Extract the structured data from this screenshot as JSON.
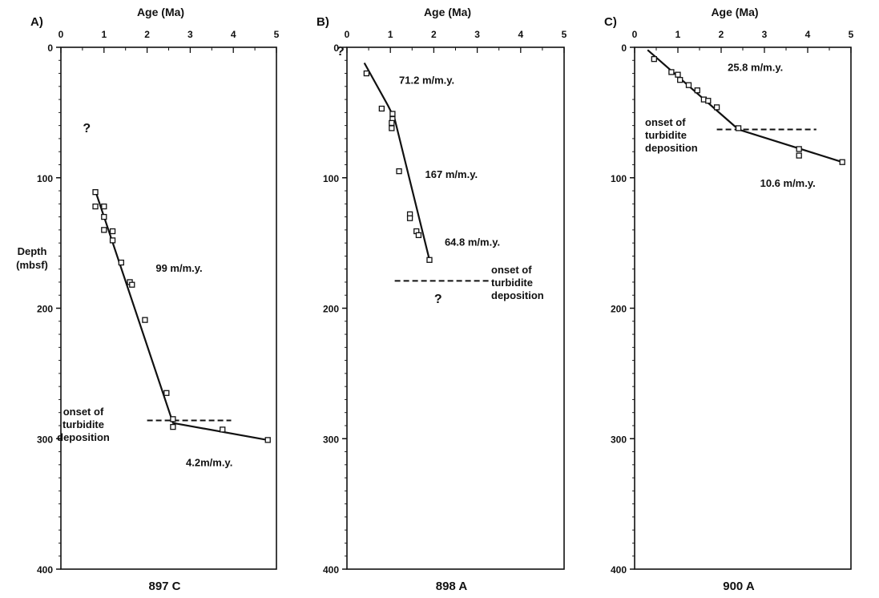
{
  "chart_data": [
    {
      "type": "scatter",
      "panel_label": "A)",
      "site_label": "897 C",
      "xlabel": "Age (Ma)",
      "ylabel": [
        "Depth",
        "(mbsf)"
      ],
      "xlim": [
        0,
        5
      ],
      "ylim": [
        0,
        400
      ],
      "y_inverted": true,
      "x_ticks": [
        "0",
        "1",
        "2",
        "3",
        "4",
        "5"
      ],
      "y_ticks": [
        "0",
        "100",
        "200",
        "300",
        "400"
      ],
      "points": [
        {
          "x": 0.8,
          "y": 111
        },
        {
          "x": 0.8,
          "y": 122
        },
        {
          "x": 1.0,
          "y": 122
        },
        {
          "x": 1.0,
          "y": 130
        },
        {
          "x": 1.0,
          "y": 140
        },
        {
          "x": 1.2,
          "y": 141
        },
        {
          "x": 1.2,
          "y": 148
        },
        {
          "x": 1.4,
          "y": 165
        },
        {
          "x": 1.6,
          "y": 180
        },
        {
          "x": 1.65,
          "y": 182
        },
        {
          "x": 1.95,
          "y": 209
        },
        {
          "x": 2.45,
          "y": 265
        },
        {
          "x": 2.6,
          "y": 285
        },
        {
          "x": 2.6,
          "y": 291
        },
        {
          "x": 3.75,
          "y": 293
        },
        {
          "x": 4.8,
          "y": 301
        }
      ],
      "fit_lines": [
        {
          "x": [
            0.8,
            2.6,
            4.8
          ],
          "y": [
            110,
            288,
            301
          ]
        }
      ],
      "onset_line": {
        "x": [
          2.0,
          3.95
        ],
        "y": 286
      },
      "annotations": [
        {
          "text": "99 m/m.y.",
          "x": 2.2,
          "y": 172
        },
        {
          "text": "4.2m/m.y.",
          "x": 2.9,
          "y": 321
        },
        {
          "text": "?",
          "x": 0.6,
          "y": 65
        }
      ],
      "onset_text": [
        "onset of",
        "turbidite",
        "deposition"
      ]
    },
    {
      "type": "scatter",
      "panel_label": "B)",
      "site_label": "898 A",
      "xlabel": "Age (Ma)",
      "xlim": [
        0,
        5
      ],
      "ylim": [
        0,
        400
      ],
      "y_inverted": true,
      "x_ticks": [
        "0",
        "1",
        "2",
        "3",
        "4",
        "5"
      ],
      "y_ticks": [
        "0",
        "100",
        "200",
        "300",
        "400"
      ],
      "points": [
        {
          "x": 0.45,
          "y": 20
        },
        {
          "x": 0.8,
          "y": 47
        },
        {
          "x": 1.05,
          "y": 51
        },
        {
          "x": 1.05,
          "y": 55
        },
        {
          "x": 1.03,
          "y": 58
        },
        {
          "x": 1.03,
          "y": 62
        },
        {
          "x": 1.2,
          "y": 95
        },
        {
          "x": 1.45,
          "y": 128
        },
        {
          "x": 1.45,
          "y": 131
        },
        {
          "x": 1.6,
          "y": 141
        },
        {
          "x": 1.65,
          "y": 144
        },
        {
          "x": 1.9,
          "y": 163
        }
      ],
      "fit_lines": [
        {
          "x": [
            0.4,
            0.95,
            1.1,
            1.9
          ],
          "y": [
            12,
            45,
            55,
            163
          ]
        }
      ],
      "onset_line": {
        "x": [
          1.1,
          3.3
        ],
        "y": 179
      },
      "annotations": [
        {
          "text": "71.2  m/m.y.",
          "x": 1.2,
          "y": 28
        },
        {
          "text": "167  m/m.y.",
          "x": 1.8,
          "y": 100
        },
        {
          "text": "64.8  m/m.y.",
          "x": 2.25,
          "y": 152
        },
        {
          "text": "?",
          "x": 2.1,
          "y": 196
        },
        {
          "text": "?",
          "x": -0.15,
          "y": 6
        }
      ],
      "onset_text": [
        "onset of",
        "turbidite",
        "deposition"
      ]
    },
    {
      "type": "scatter",
      "panel_label": "C)",
      "site_label": "900 A",
      "xlabel": "Age (Ma)",
      "xlim": [
        0,
        5
      ],
      "ylim": [
        0,
        400
      ],
      "y_inverted": true,
      "x_ticks": [
        "0",
        "1",
        "2",
        "3",
        "4",
        "5"
      ],
      "y_ticks": [
        "0",
        "100",
        "200",
        "300",
        "400"
      ],
      "points": [
        {
          "x": 0.45,
          "y": 9
        },
        {
          "x": 0.85,
          "y": 19
        },
        {
          "x": 1.0,
          "y": 21
        },
        {
          "x": 1.05,
          "y": 25
        },
        {
          "x": 1.25,
          "y": 29
        },
        {
          "x": 1.45,
          "y": 33
        },
        {
          "x": 1.6,
          "y": 40
        },
        {
          "x": 1.7,
          "y": 41
        },
        {
          "x": 1.9,
          "y": 46
        },
        {
          "x": 2.4,
          "y": 62
        },
        {
          "x": 3.8,
          "y": 78
        },
        {
          "x": 3.8,
          "y": 83
        },
        {
          "x": 4.8,
          "y": 88
        }
      ],
      "fit_lines": [
        {
          "x": [
            0.3,
            2.4,
            4.8
          ],
          "y": [
            2,
            63,
            88
          ]
        }
      ],
      "onset_line": {
        "x": [
          1.9,
          4.2
        ],
        "y": 63
      },
      "annotations": [
        {
          "text": "25.8  m/m.y.",
          "x": 2.15,
          "y": 18
        },
        {
          "text": "10.6  m/m.y.",
          "x": 2.9,
          "y": 107
        }
      ],
      "onset_text": [
        "onset of",
        "turbidite",
        "deposition"
      ]
    }
  ]
}
